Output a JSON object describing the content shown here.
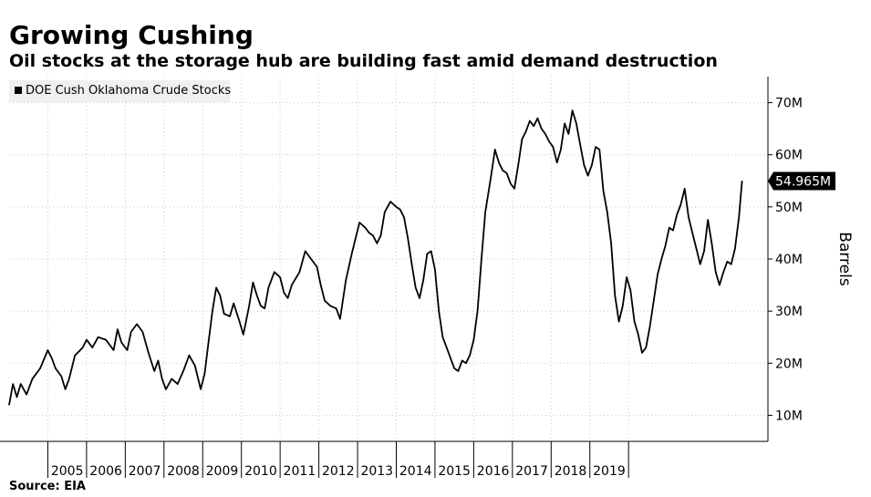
{
  "header": {
    "title": "Growing Cushing",
    "subtitle": "Oil stocks at the storage hub are building fast amid demand destruction"
  },
  "footer": {
    "source": "Source: EIA"
  },
  "chart_data": {
    "type": "line",
    "ylabel": "Barrels",
    "legend": {
      "position": "top-left"
    },
    "series": [
      {
        "name": "DOE Cush Oklahoma Crude Stocks",
        "color": "#000000",
        "points": [
          [
            2004.0,
            12.0
          ],
          [
            2004.1,
            16.0
          ],
          [
            2004.2,
            13.5
          ],
          [
            2004.3,
            16.0
          ],
          [
            2004.45,
            14.0
          ],
          [
            2004.6,
            17.0
          ],
          [
            2004.8,
            19.0
          ],
          [
            2005.0,
            22.5
          ],
          [
            2005.1,
            21.0
          ],
          [
            2005.2,
            19.0
          ],
          [
            2005.35,
            17.5
          ],
          [
            2005.45,
            15.0
          ],
          [
            2005.55,
            17.0
          ],
          [
            2005.7,
            21.5
          ],
          [
            2005.9,
            23.0
          ],
          [
            2006.0,
            24.5
          ],
          [
            2006.15,
            23.0
          ],
          [
            2006.3,
            25.0
          ],
          [
            2006.5,
            24.5
          ],
          [
            2006.7,
            22.5
          ],
          [
            2006.8,
            26.5
          ],
          [
            2006.9,
            24.0
          ],
          [
            2007.05,
            22.5
          ],
          [
            2007.15,
            26.0
          ],
          [
            2007.3,
            27.5
          ],
          [
            2007.45,
            26.0
          ],
          [
            2007.6,
            22.0
          ],
          [
            2007.75,
            18.5
          ],
          [
            2007.85,
            20.5
          ],
          [
            2007.95,
            17.0
          ],
          [
            2008.05,
            15.0
          ],
          [
            2008.2,
            17.0
          ],
          [
            2008.35,
            16.0
          ],
          [
            2008.5,
            18.5
          ],
          [
            2008.65,
            21.5
          ],
          [
            2008.8,
            19.5
          ],
          [
            2008.95,
            15.0
          ],
          [
            2009.05,
            18.0
          ],
          [
            2009.15,
            24.0
          ],
          [
            2009.25,
            30.0
          ],
          [
            2009.35,
            34.5
          ],
          [
            2009.45,
            33.0
          ],
          [
            2009.55,
            29.5
          ],
          [
            2009.7,
            29.0
          ],
          [
            2009.8,
            31.5
          ],
          [
            2009.95,
            28.0
          ],
          [
            2010.05,
            25.5
          ],
          [
            2010.2,
            31.0
          ],
          [
            2010.3,
            35.5
          ],
          [
            2010.4,
            33.0
          ],
          [
            2010.5,
            31.0
          ],
          [
            2010.6,
            30.5
          ],
          [
            2010.7,
            34.5
          ],
          [
            2010.85,
            37.5
          ],
          [
            2011.0,
            36.5
          ],
          [
            2011.1,
            33.5
          ],
          [
            2011.2,
            32.5
          ],
          [
            2011.3,
            35.0
          ],
          [
            2011.5,
            37.5
          ],
          [
            2011.65,
            41.5
          ],
          [
            2011.8,
            40.0
          ],
          [
            2011.95,
            38.5
          ],
          [
            2012.05,
            35.0
          ],
          [
            2012.15,
            32.0
          ],
          [
            2012.3,
            31.0
          ],
          [
            2012.45,
            30.5
          ],
          [
            2012.55,
            28.5
          ],
          [
            2012.7,
            36.0
          ],
          [
            2012.85,
            41.0
          ],
          [
            2012.95,
            44.0
          ],
          [
            2013.05,
            47.0
          ],
          [
            2013.2,
            46.0
          ],
          [
            2013.3,
            45.0
          ],
          [
            2013.4,
            44.5
          ],
          [
            2013.5,
            43.0
          ],
          [
            2013.6,
            44.5
          ],
          [
            2013.7,
            49.0
          ],
          [
            2013.85,
            51.0
          ],
          [
            2014.0,
            50.0
          ],
          [
            2014.1,
            49.5
          ],
          [
            2014.2,
            48.0
          ],
          [
            2014.3,
            44.0
          ],
          [
            2014.4,
            39.0
          ],
          [
            2014.5,
            34.5
          ],
          [
            2014.6,
            32.5
          ],
          [
            2014.7,
            36.0
          ],
          [
            2014.8,
            41.0
          ],
          [
            2014.9,
            41.5
          ],
          [
            2015.0,
            38.0
          ],
          [
            2015.1,
            30.0
          ],
          [
            2015.2,
            25.0
          ],
          [
            2015.3,
            23.0
          ],
          [
            2015.4,
            21.0
          ],
          [
            2015.5,
            19.0
          ],
          [
            2015.6,
            18.5
          ],
          [
            2015.7,
            20.5
          ],
          [
            2015.8,
            20.0
          ],
          [
            2015.9,
            21.5
          ],
          [
            2016.0,
            24.5
          ],
          [
            2016.1,
            30.0
          ],
          [
            2016.2,
            40.0
          ],
          [
            2016.3,
            49.0
          ],
          [
            2016.45,
            56.0
          ],
          [
            2016.55,
            61.0
          ],
          [
            2016.65,
            58.5
          ],
          [
            2016.75,
            57.0
          ],
          [
            2016.85,
            56.5
          ],
          [
            2016.95,
            54.5
          ],
          [
            2017.05,
            53.5
          ],
          [
            2017.15,
            58.0
          ],
          [
            2017.25,
            63.0
          ],
          [
            2017.35,
            64.5
          ],
          [
            2017.45,
            66.5
          ],
          [
            2017.55,
            65.5
          ],
          [
            2017.65,
            67.0
          ],
          [
            2017.75,
            65.0
          ],
          [
            2017.85,
            64.0
          ],
          [
            2017.95,
            62.5
          ],
          [
            2018.05,
            61.5
          ],
          [
            2018.15,
            58.5
          ],
          [
            2018.25,
            61.0
          ],
          [
            2018.35,
            66.0
          ],
          [
            2018.45,
            64.0
          ],
          [
            2018.55,
            68.5
          ],
          [
            2018.65,
            66.0
          ],
          [
            2018.75,
            62.0
          ],
          [
            2018.85,
            58.0
          ],
          [
            2018.95,
            56.0
          ],
          [
            2019.05,
            58.0
          ],
          [
            2019.15,
            61.5
          ],
          [
            2019.25,
            61.0
          ],
          [
            2019.35,
            53.0
          ],
          [
            2019.45,
            49.0
          ],
          [
            2019.55,
            43.0
          ],
          [
            2019.65,
            33.0
          ],
          [
            2019.75,
            28.0
          ],
          [
            2019.85,
            31.0
          ],
          [
            2019.95,
            36.5
          ],
          [
            2020.05,
            34.0
          ],
          [
            2020.15,
            28.0
          ],
          [
            2020.25,
            25.5
          ],
          [
            2020.35,
            22.0
          ],
          [
            2020.45,
            23.0
          ],
          [
            2020.55,
            27.0
          ],
          [
            2020.65,
            32.0
          ],
          [
            2020.75,
            37.0
          ],
          [
            2020.85,
            40.0
          ],
          [
            2020.95,
            42.5
          ],
          [
            2021.05,
            46.0
          ],
          [
            2021.15,
            45.5
          ],
          [
            2021.25,
            48.5
          ],
          [
            2021.35,
            50.5
          ],
          [
            2021.45,
            53.5
          ],
          [
            2021.55,
            48.0
          ],
          [
            2021.65,
            45.0
          ],
          [
            2021.75,
            42.0
          ],
          [
            2021.85,
            39.0
          ],
          [
            2021.95,
            41.5
          ],
          [
            2022.05,
            47.5
          ],
          [
            2022.15,
            43.0
          ],
          [
            2022.25,
            37.5
          ],
          [
            2022.35,
            35.0
          ],
          [
            2022.45,
            37.5
          ],
          [
            2022.55,
            39.5
          ],
          [
            2022.65,
            39.0
          ],
          [
            2022.75,
            42.0
          ],
          [
            2022.85,
            48.0
          ],
          [
            2022.93,
            54.965
          ]
        ]
      }
    ],
    "last_value_label": "54.965M",
    "x_axis": {
      "range": [
        2004.0,
        2023.6
      ],
      "labels": [
        {
          "text": "2005",
          "x": 2005.5
        },
        {
          "text": "2006",
          "x": 2006.5
        },
        {
          "text": "2007",
          "x": 2007.5
        },
        {
          "text": "2008",
          "x": 2008.5
        },
        {
          "text": "2009",
          "x": 2009.5
        },
        {
          "text": "2010",
          "x": 2010.5
        },
        {
          "text": "2011",
          "x": 2011.5
        },
        {
          "text": "2012",
          "x": 2012.5
        },
        {
          "text": "2013",
          "x": 2013.5
        },
        {
          "text": "2014",
          "x": 2014.5
        },
        {
          "text": "2015",
          "x": 2015.5
        },
        {
          "text": "2016",
          "x": 2016.5
        },
        {
          "text": "2017",
          "x": 2017.5
        },
        {
          "text": "2018",
          "x": 2018.5
        },
        {
          "text": "2019",
          "x": 2019.5
        }
      ],
      "gridlines": [
        2005,
        2006,
        2007,
        2008,
        2009,
        2010,
        2011,
        2012,
        2013,
        2014,
        2015,
        2016,
        2017,
        2018,
        2019,
        2020
      ]
    },
    "y_axis": {
      "range": [
        5,
        75
      ],
      "ticks": [
        {
          "value": 10,
          "label": "10M"
        },
        {
          "value": 20,
          "label": "20M"
        },
        {
          "value": 30,
          "label": "30M"
        },
        {
          "value": 40,
          "label": "40M"
        },
        {
          "value": 50,
          "label": "50M"
        },
        {
          "value": 60,
          "label": "60M"
        },
        {
          "value": 70,
          "label": "70M"
        }
      ]
    },
    "grid": true
  }
}
